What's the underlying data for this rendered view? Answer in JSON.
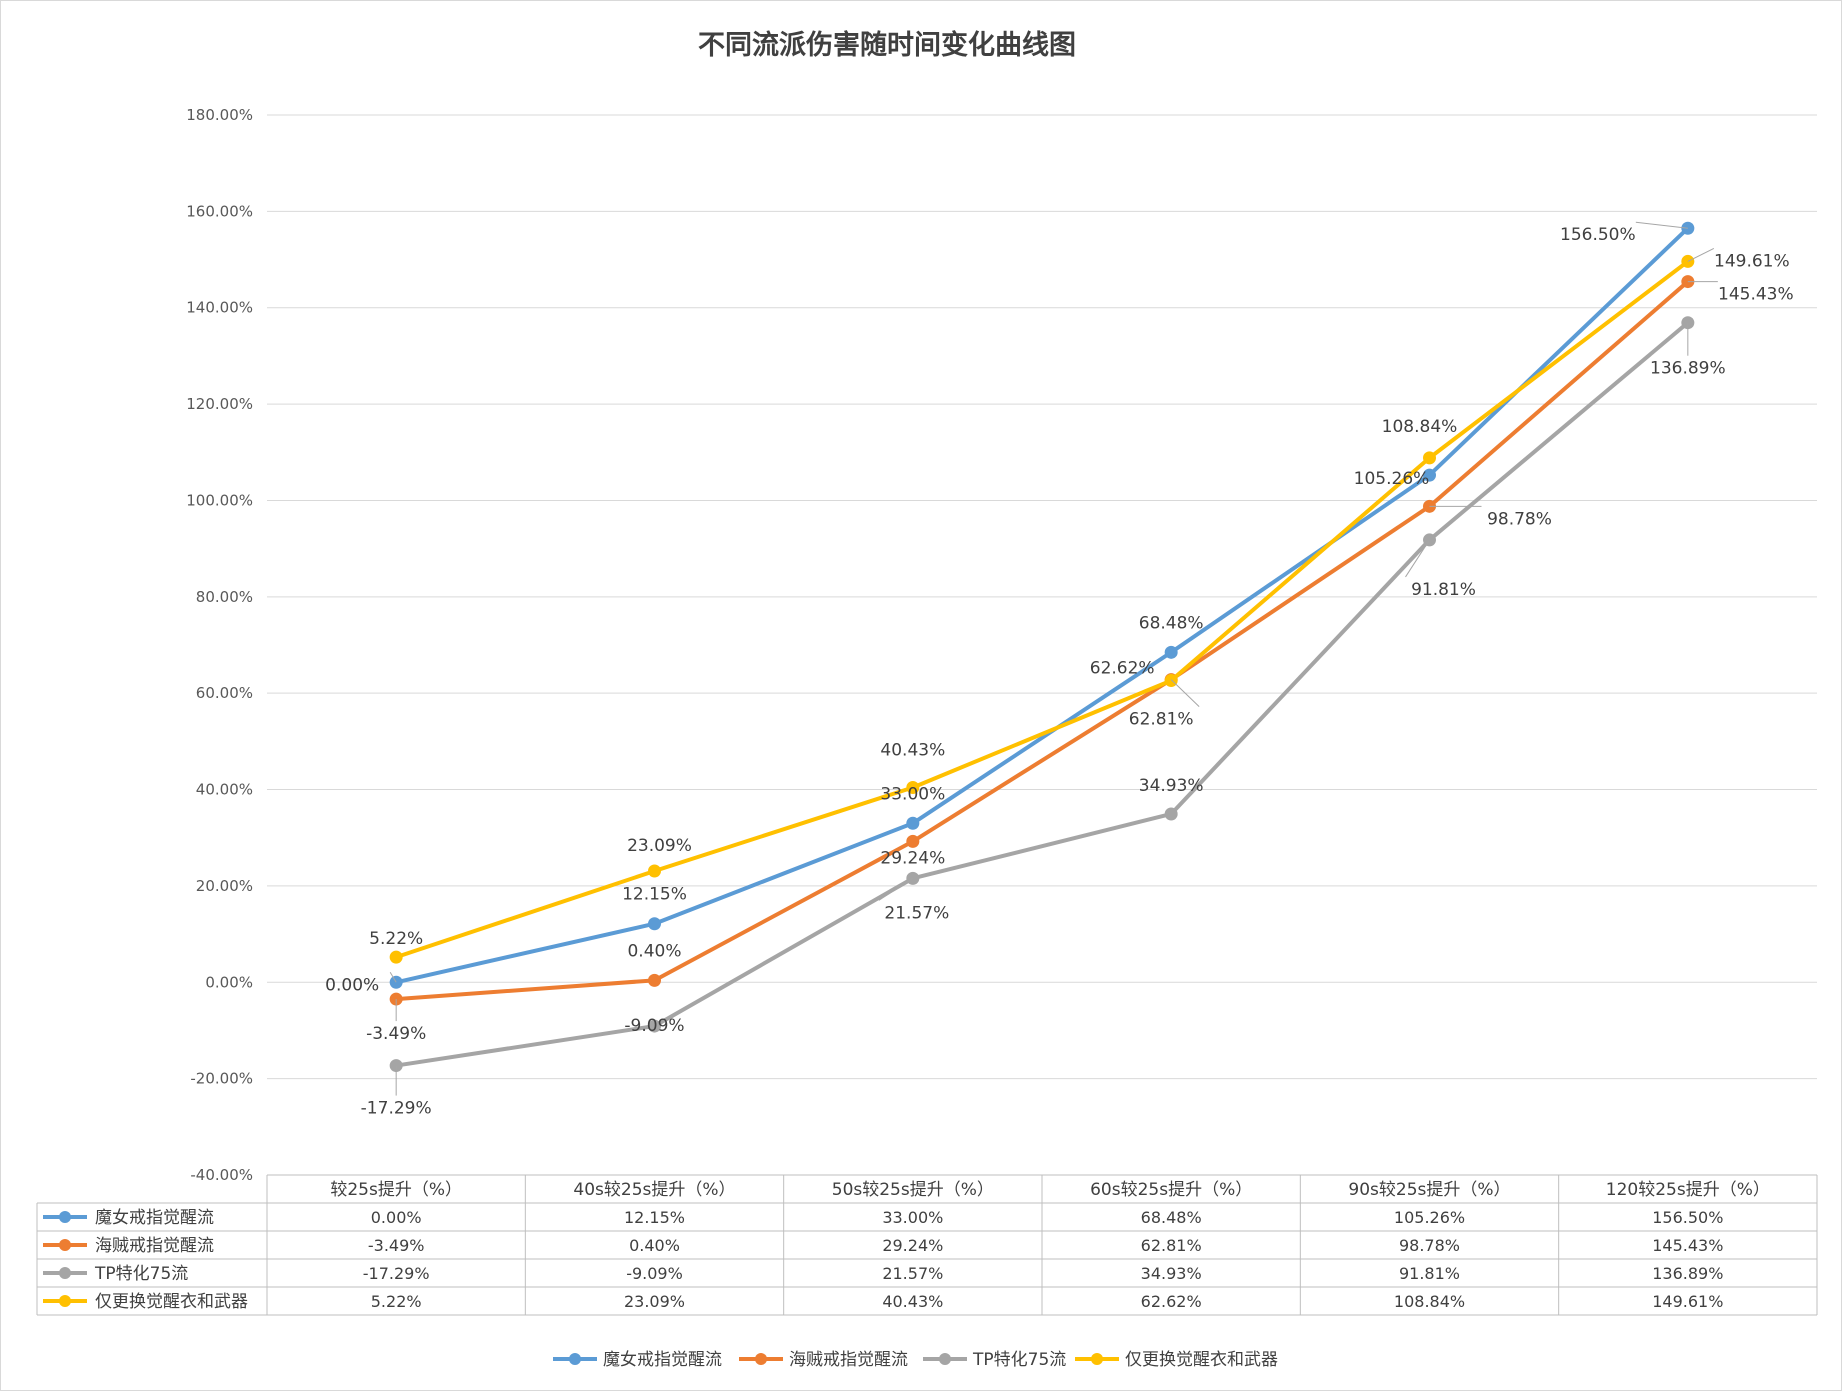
{
  "chart_data": {
    "type": "line",
    "title": "不同流派伤害随时间变化曲线图",
    "categories": [
      "较25s提升（%）",
      "40s较25s提升（%）",
      "50s较25s提升（%）",
      "60s较25s提升（%）",
      "90s较25s提升（%）",
      "120较25s提升（%）"
    ],
    "ylim": [
      -40,
      180
    ],
    "yticks": [
      -40,
      -20,
      0,
      20,
      40,
      60,
      80,
      100,
      120,
      140,
      160,
      180
    ],
    "grid": true,
    "legend_position": "bottom",
    "data_table": true,
    "series": [
      {
        "name": "魔女戒指觉醒流",
        "color": "#5B9BD5",
        "values": [
          0.0,
          12.15,
          33.0,
          68.48,
          105.26,
          156.5
        ],
        "labels": [
          "0.00%",
          "12.15%",
          "33.00%",
          "68.48%",
          "105.26%",
          "156.50%"
        ]
      },
      {
        "name": "海贼戒指觉醒流",
        "color": "#ED7D31",
        "values": [
          -3.49,
          0.4,
          29.24,
          62.81,
          98.78,
          145.43
        ],
        "labels": [
          "-3.49%",
          "0.40%",
          "29.24%",
          "62.81%",
          "98.78%",
          "145.43%"
        ]
      },
      {
        "name": "TP特化75流",
        "color": "#A5A5A5",
        "values": [
          -17.29,
          -9.09,
          21.57,
          34.93,
          91.81,
          136.89
        ],
        "labels": [
          "-17.29%",
          "-9.09%",
          "21.57%",
          "34.93%",
          "91.81%",
          "136.89%"
        ]
      },
      {
        "name": "仅更换觉醒衣和武器",
        "color": "#FFC000",
        "values": [
          5.22,
          23.09,
          40.43,
          62.62,
          108.84,
          149.61
        ],
        "labels": [
          "5.22%",
          "23.09%",
          "40.43%",
          "62.62%",
          "108.84%",
          "149.61%"
        ]
      }
    ]
  }
}
